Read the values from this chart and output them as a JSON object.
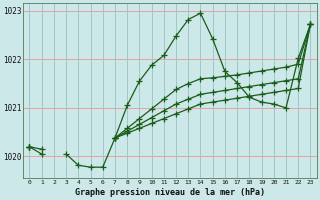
{
  "title": "Graphe pression niveau de la mer (hPa)",
  "background_color": "#cce8e8",
  "grid_color_h": "#e8a0a0",
  "grid_color_v": "#a0c8c8",
  "line_color": "#1a5c1a",
  "ylim": [
    1019.55,
    1023.15
  ],
  "yticks": [
    1020,
    1021,
    1022,
    1023
  ],
  "xlim": [
    -0.5,
    23.5
  ],
  "s1": [
    1020.2,
    1020.15,
    null,
    1020.05,
    1019.82,
    1019.78,
    1019.78,
    1020.38,
    1021.05,
    1021.55,
    1021.88,
    1022.08,
    1022.48,
    1022.82,
    1022.95,
    1022.42,
    1021.75,
    1021.52,
    1021.22,
    1021.12,
    1021.08,
    1021.0,
    1022.02,
    1022.72
  ],
  "s2": [
    1020.2,
    1020.05,
    null,
    null,
    null,
    null,
    null,
    1020.38,
    1020.58,
    1020.78,
    1020.98,
    1021.18,
    1021.38,
    1021.5,
    1021.6,
    1021.62,
    1021.65,
    1021.68,
    1021.72,
    1021.76,
    1021.8,
    1021.84,
    1021.9,
    1022.72
  ],
  "s3": [
    1020.2,
    null,
    null,
    null,
    null,
    null,
    null,
    1020.38,
    1020.52,
    1020.66,
    1020.8,
    1020.94,
    1021.08,
    1021.18,
    1021.28,
    1021.32,
    1021.36,
    1021.4,
    1021.44,
    1021.48,
    1021.52,
    1021.56,
    1021.6,
    1022.72
  ],
  "s4": [
    1020.2,
    null,
    null,
    null,
    null,
    null,
    null,
    1020.38,
    1020.48,
    1020.58,
    1020.68,
    1020.78,
    1020.88,
    1020.98,
    1021.08,
    1021.12,
    1021.16,
    1021.2,
    1021.24,
    1021.28,
    1021.32,
    1021.36,
    1021.4,
    1022.72
  ]
}
